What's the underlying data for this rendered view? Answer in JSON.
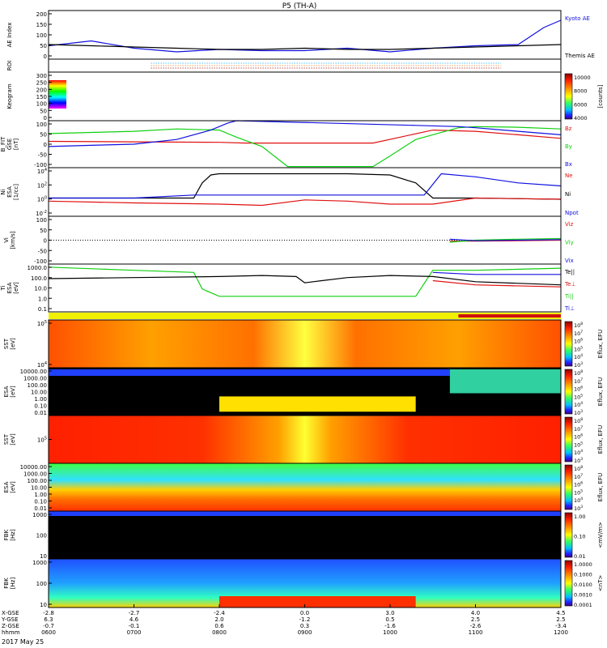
{
  "chart_data": {
    "type": "line",
    "title": "P5 (TH-A)",
    "date": "2017 May 25",
    "colors": {
      "black": "#000000",
      "blue": "#1010e0",
      "red": "#e01010",
      "green": "#10d010",
      "orange": "#e07000",
      "yellow": "#f0f000"
    },
    "panels": [
      {
        "id": "ae",
        "ylabel": "AE Index",
        "yticks": [
          "200",
          "150",
          "100",
          "50",
          "0"
        ],
        "legend": [
          {
            "label": "Kyoto AE",
            "color": "#1010e0"
          },
          {
            "label": "Themis AE",
            "color": "#000000"
          }
        ],
        "series": [
          {
            "name": "Kyoto AE",
            "color": "#1010e0",
            "x": [
              6.0,
              6.5,
              7.0,
              7.5,
              8.0,
              8.5,
              9.0,
              9.5,
              10.0,
              10.5,
              11.0,
              11.5,
              11.8,
              12.0
            ],
            "values": [
              55,
              75,
              45,
              30,
              40,
              35,
              35,
              45,
              30,
              45,
              55,
              60,
              130,
              160
            ]
          },
          {
            "name": "Themis AE",
            "color": "#000000",
            "x": [
              6.0,
              6.5,
              7.0,
              7.5,
              8.0,
              8.5,
              9.0,
              9.5,
              10.0,
              10.5,
              11.0,
              11.5,
              12.0
            ],
            "values": [
              60,
              55,
              50,
              45,
              40,
              40,
              45,
              40,
              40,
              45,
              50,
              55,
              60
            ]
          }
        ]
      },
      {
        "id": "roi",
        "ylabel": "ROI",
        "yticks": [],
        "legend": []
      },
      {
        "id": "keogram",
        "ylabel": "Keogram",
        "yticks": [
          "300",
          "250",
          "200",
          "150",
          "100",
          "50",
          "0"
        ],
        "colorbar": {
          "label": "[counts]",
          "ticks": [
            "10000",
            "8000",
            "6000",
            "4000"
          ]
        },
        "legend": []
      },
      {
        "id": "bfit",
        "ylabel": "B_FIT\nGSE\n[nT]",
        "yticks": [
          "100",
          "50",
          "0",
          "-50",
          "-100"
        ],
        "legend": [
          {
            "label": "Bz",
            "color": "#e01010"
          },
          {
            "label": "By",
            "color": "#10d010"
          },
          {
            "label": "Bx",
            "color": "#1010e0"
          }
        ],
        "series": [
          {
            "name": "Bz",
            "color": "#e01010",
            "x": [
              6.0,
              7.0,
              8.0,
              8.3,
              9.8,
              10.5,
              11.0,
              11.5,
              12.0
            ],
            "values": [
              12,
              10,
              8,
              5,
              5,
              60,
              55,
              40,
              25
            ]
          },
          {
            "name": "By",
            "color": "#10d010",
            "x": [
              6.0,
              6.5,
              7.0,
              7.5,
              8.0,
              8.2,
              8.5,
              8.8,
              9.8,
              10.0,
              10.3,
              10.8,
              11.0,
              11.5,
              12.0
            ],
            "values": [
              45,
              50,
              55,
              65,
              60,
              30,
              -10,
              -95,
              -95,
              -50,
              20,
              70,
              75,
              72,
              65
            ]
          },
          {
            "name": "Bx",
            "color": "#1010e0",
            "x": [
              6.0,
              6.5,
              7.0,
              7.5,
              7.9,
              8.1,
              8.2,
              10.3,
              10.8,
              11.0,
              11.5,
              12.0
            ],
            "values": [
              -10,
              -5,
              0,
              20,
              60,
              90,
              100,
              80,
              75,
              70,
              55,
              40
            ]
          }
        ]
      },
      {
        "id": "ni",
        "ylabel": "Ni\nESA\n[1/cc]",
        "yticks": [
          "10^4",
          "10^2",
          "10^0",
          "10^-2"
        ],
        "legend": [
          {
            "label": "Ne",
            "color": "#e01010"
          },
          {
            "label": "Ni",
            "color": "#000000"
          },
          {
            "label": "Npot",
            "color": "#1010e0"
          }
        ],
        "series": [
          {
            "name": "Ni",
            "color": "#000000",
            "x": [
              6.0,
              7.0,
              7.7,
              7.8,
              7.9,
              8.0,
              8.5,
              9.0,
              9.5,
              10.0,
              10.3,
              10.5,
              11.0,
              12.0
            ],
            "values": [
              0.0,
              0.0,
              0.0,
              2.5,
              3.8,
              4.0,
              4.0,
              4.0,
              4.0,
              3.8,
              2.5,
              0.0,
              0.0,
              -0.2
            ]
          },
          {
            "name": "Ne",
            "color": "#e01010",
            "x": [
              6.0,
              7.0,
              8.0,
              8.5,
              9.0,
              9.5,
              10.0,
              10.5,
              11.0,
              12.0
            ],
            "values": [
              -0.5,
              -0.8,
              -1.0,
              -1.2,
              -0.3,
              -0.5,
              -1.0,
              -1.0,
              0.0,
              -0.2
            ]
          },
          {
            "name": "Npot",
            "color": "#1010e0",
            "x": [
              6.0,
              7.0,
              7.7,
              10.4,
              10.6,
              11.0,
              11.5,
              12.0
            ],
            "values": [
              0.0,
              0.0,
              0.5,
              0.5,
              4.0,
              3.5,
              2.5,
              2.0
            ]
          }
        ]
      },
      {
        "id": "vi",
        "ylabel": "Vi\n[km/s]",
        "yticks": [
          "100",
          "50",
          "0",
          "-50",
          "-100"
        ],
        "legend": [
          {
            "label": "Viz",
            "color": "#e01010"
          },
          {
            "label": "Viy",
            "color": "#10d010"
          },
          {
            "label": "Vix",
            "color": "#1010e0"
          }
        ],
        "series": [
          {
            "name": "Viz",
            "color": "#e01010",
            "x": [
              10.7,
              11.0,
              11.5,
              12.0
            ],
            "values": [
              -5,
              -5,
              -3,
              0
            ]
          },
          {
            "name": "Viy",
            "color": "#10d010",
            "x": [
              10.7,
              11.0,
              11.5,
              12.0
            ],
            "values": [
              -10,
              0,
              5,
              8
            ]
          },
          {
            "name": "Vix",
            "color": "#1010e0",
            "x": [
              10.7,
              11.0,
              11.5,
              12.0
            ],
            "values": [
              5,
              -3,
              0,
              3
            ]
          }
        ]
      },
      {
        "id": "ti",
        "ylabel": "Ti\nESA\n[eV]",
        "yticks": [
          "1000.0",
          "100.0",
          "10.0",
          "1.0",
          "0.1"
        ],
        "legend": [
          {
            "label": "Te||",
            "color": "#000000"
          },
          {
            "label": "Te⊥",
            "color": "#e01010"
          },
          {
            "label": "Ti||",
            "color": "#10d010"
          },
          {
            "label": "Ti⊥",
            "color": "#1010e0"
          }
        ],
        "series": [
          {
            "name": "Ti||",
            "color": "#10d010",
            "x": [
              6.0,
              7.0,
              7.7,
              7.8,
              8.0,
              10.3,
              10.5,
              11.0,
              12.0
            ],
            "values": [
              3.3,
              3.0,
              2.8,
              1.2,
              0.5,
              0.5,
              3.0,
              3.0,
              3.2
            ]
          },
          {
            "name": "Te||",
            "color": "#000000",
            "x": [
              6.0,
              7.0,
              8.0,
              8.5,
              8.9,
              9.0,
              9.2,
              9.5,
              10.0,
              10.5,
              11.0,
              12.0
            ],
            "values": [
              2.2,
              2.3,
              2.4,
              2.5,
              2.4,
              1.8,
              2.0,
              2.3,
              2.5,
              2.4,
              1.9,
              1.6
            ]
          },
          {
            "name": "Te⊥",
            "color": "#e01010",
            "x": [
              10.5,
              11.0,
              12.0
            ],
            "values": [
              2.0,
              1.6,
              1.4
            ]
          },
          {
            "name": "Ti⊥",
            "color": "#1010e0",
            "x": [
              10.5,
              11.0,
              12.0
            ],
            "values": [
              2.8,
              2.6,
              2.6
            ]
          }
        ]
      },
      {
        "id": "sst_ion",
        "ylabel": "SST\n[eV]",
        "yticks": [
          "10^5",
          "10^4"
        ],
        "colorbar": {
          "label": "Eflux, EFU",
          "ticks": [
            "10^8",
            "10^7",
            "10^6",
            "10^5",
            "10^4",
            "10^3"
          ]
        },
        "legend": []
      },
      {
        "id": "esa_ion",
        "ylabel": "ESA\n[eV]",
        "yticks": [
          "10000.00",
          "1000.00",
          "100.00",
          "10.00",
          "1.00",
          "0.10",
          "0.01"
        ],
        "colorbar": {
          "label": "Eflux, EFU",
          "ticks": [
            "10^8",
            "10^7",
            "10^6",
            "10^5",
            "10^4",
            "10^3"
          ]
        },
        "legend": []
      },
      {
        "id": "sst_elec",
        "ylabel": "SST\n[eV]",
        "yticks": [
          "10^5"
        ],
        "colorbar": {
          "label": "Eflux, EFU",
          "ticks": [
            "10^8",
            "10^7",
            "10^6",
            "10^5",
            "10^4",
            "10^3"
          ]
        },
        "legend": []
      },
      {
        "id": "esa_elec",
        "ylabel": "ESA\n[eV]",
        "yticks": [
          "10000.00",
          "1000.00",
          "100.00",
          "10.00",
          "1.00",
          "0.10",
          "0.01"
        ],
        "colorbar": {
          "label": "Eflux, EFU",
          "ticks": [
            "10^8",
            "10^7",
            "10^6",
            "10^5",
            "10^4",
            "10^3"
          ]
        },
        "legend": []
      },
      {
        "id": "fbk_e",
        "ylabel": "FBK\n[Hz]",
        "yticks": [
          "1000",
          "100",
          "10"
        ],
        "colorbar": {
          "label": "<mV/m>",
          "ticks": [
            "1.00",
            "0.10",
            "0.01"
          ]
        },
        "legend": []
      },
      {
        "id": "fbk_b",
        "ylabel": "FBK\n[Hz]",
        "yticks": [
          "1000",
          "100",
          "10"
        ],
        "colorbar": {
          "label": "<nT>",
          "ticks": [
            "1.0000",
            "0.1000",
            "0.0100",
            "0.0010",
            "0.0001"
          ]
        },
        "legend": []
      }
    ],
    "xaxis": {
      "rows": [
        {
          "label": "X-GSE",
          "values": [
            "-2.8",
            "-2.7",
            "-2.4",
            "0.0",
            "3.0",
            "4.0",
            "4.5"
          ]
        },
        {
          "label": "Y-GSE",
          "values": [
            "6.3",
            "4.6",
            "2.0",
            "-1.2",
            "0.5",
            "2.5",
            "2.5"
          ]
        },
        {
          "label": "Z-GSE",
          "values": [
            "-0.7",
            "-0.1",
            "0.6",
            "0.3",
            "-1.6",
            "-2.6",
            "-3.4"
          ]
        },
        {
          "label": "hhmm",
          "values": [
            "0600",
            "0700",
            "0800",
            "0900",
            "1000",
            "1100",
            "1200"
          ]
        }
      ]
    }
  }
}
